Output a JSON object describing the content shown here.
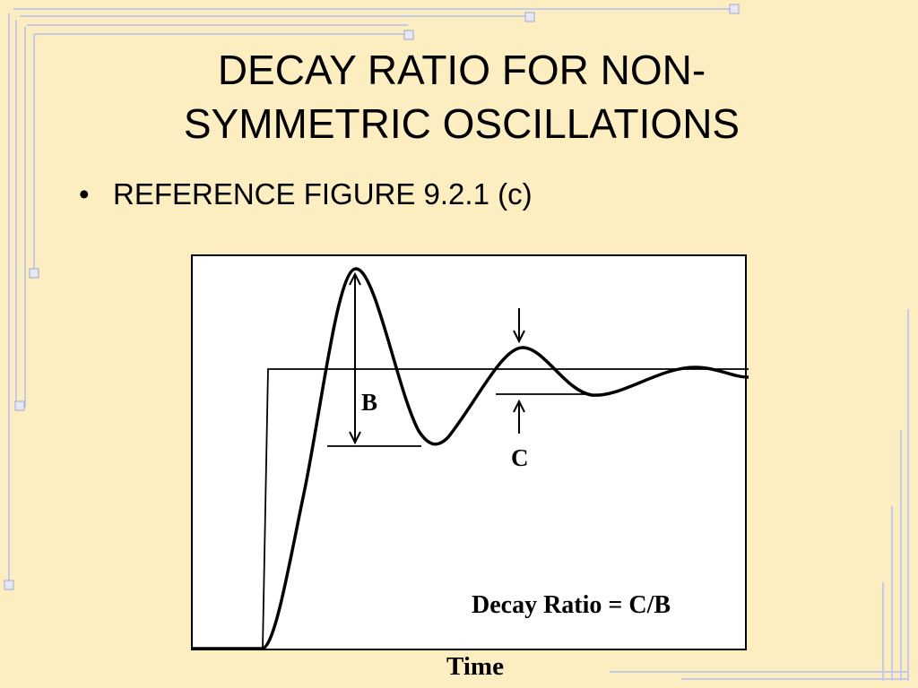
{
  "slide": {
    "title_line1": "DECAY RATIO FOR NON-",
    "title_line2": "SYMMETRIC OSCILLATIONS",
    "bullets": [
      {
        "text": "REFERENCE FIGURE 9.2.1 (c)"
      }
    ]
  },
  "figure": {
    "label_b": "B",
    "label_c": "C",
    "formula": "Decay Ratio = C/B",
    "xlabel": "Time"
  },
  "colors": {
    "background": "#fdeec2",
    "border_lines": "#c7cde8",
    "curve": "#000000"
  }
}
